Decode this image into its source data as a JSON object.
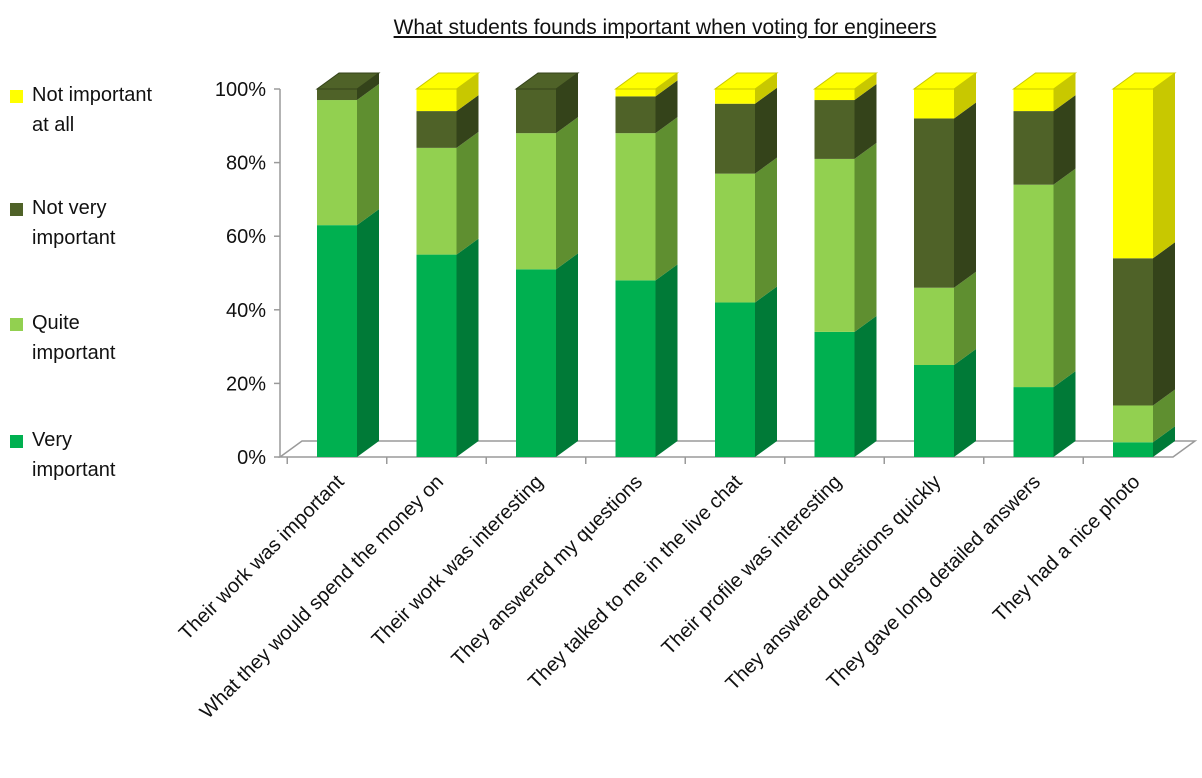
{
  "chart_data": {
    "type": "bar",
    "stacked": true,
    "three_d": true,
    "title": "What students founds important when voting for engineers",
    "categories": [
      "Their work was important",
      "What they would spend the money on",
      "Their work was interesting",
      "They answered my questions",
      "They talked to me in the live chat",
      "Their profile was interesting",
      "They answered questions quickly",
      "They gave long detailed answers",
      "They had a nice photo"
    ],
    "series": [
      {
        "name": "Very important",
        "color": "#00b050",
        "side_color": "#007a37",
        "values": [
          63,
          55,
          51,
          48,
          42,
          34,
          25,
          19,
          4
        ]
      },
      {
        "name": "Quite important",
        "color": "#92d050",
        "side_color": "#5f8f30",
        "values": [
          34,
          29,
          37,
          40,
          35,
          47,
          21,
          55,
          10
        ]
      },
      {
        "name": "Not very important",
        "color": "#4f6228",
        "side_color": "#34431a",
        "values": [
          3,
          10,
          12,
          10,
          19,
          16,
          46,
          20,
          40
        ]
      },
      {
        "name": "Not important at all",
        "color": "#ffff00",
        "side_color": "#c8c800",
        "values": [
          0,
          6,
          0,
          2,
          4,
          3,
          8,
          6,
          46
        ]
      }
    ],
    "yticks": [
      "0%",
      "20%",
      "40%",
      "60%",
      "80%",
      "100%"
    ],
    "ylim": [
      0,
      100
    ],
    "legend_position": "left",
    "grid": false
  },
  "legend": [
    {
      "text": "Not important at all",
      "color": "#ffff00"
    },
    {
      "text": "Not very important",
      "color": "#4f6228"
    },
    {
      "text": "Quite important",
      "color": "#92d050"
    },
    {
      "text": "Very important",
      "color": "#00b050"
    }
  ]
}
